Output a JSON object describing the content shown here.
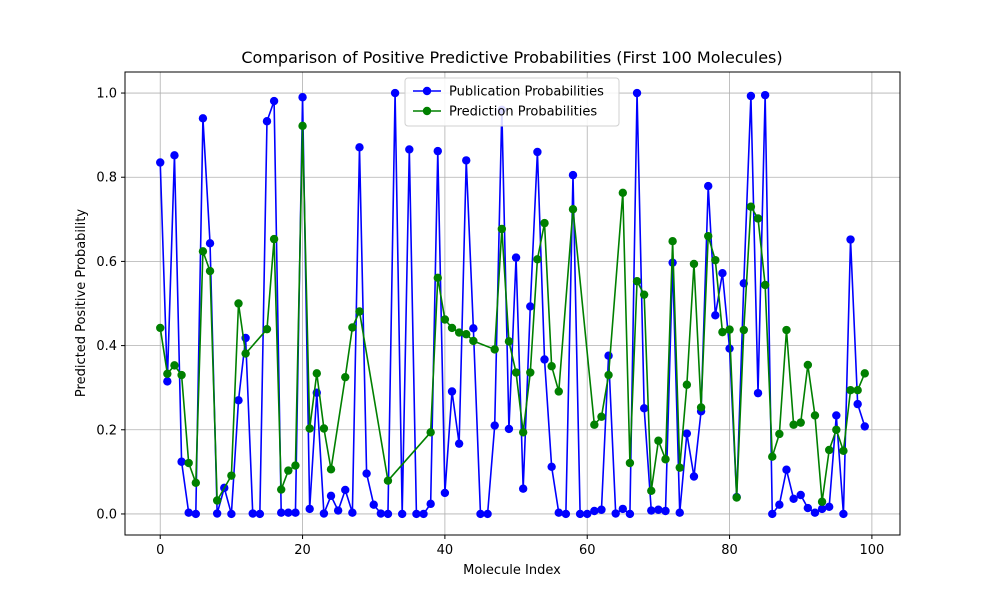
{
  "chart_data": {
    "type": "line",
    "title": "Comparison of Positive Predictive Probabilities (First 100 Molecules)",
    "xlabel": "Molecule Index",
    "ylabel": "Predicted Positive Probability",
    "xlim": [
      -4.95,
      103.95
    ],
    "ylim": [
      -0.05,
      1.05
    ],
    "xticks": [
      0,
      20,
      40,
      60,
      80,
      100
    ],
    "yticks": [
      0.0,
      0.2,
      0.4,
      0.6,
      0.8,
      1.0
    ],
    "grid": true,
    "legend_position": "top-center",
    "series": [
      {
        "name": "Publication Probabilities",
        "color": "#0000ff",
        "values": [
          0.835,
          0.315,
          0.852,
          0.124,
          0.003,
          0.0,
          0.94,
          0.643,
          0.001,
          0.062,
          0.0,
          0.27,
          0.418,
          0.001,
          0.0,
          0.933,
          0.981,
          0.003,
          0.003,
          0.003,
          0.99,
          0.012,
          0.288,
          0.001,
          0.043,
          0.008,
          0.057,
          0.003,
          0.871,
          0.096,
          0.022,
          0.001,
          0.0,
          1.0,
          0.0,
          0.866,
          0.0,
          0.0,
          0.024,
          0.862,
          0.05,
          0.291,
          0.167,
          0.84,
          0.441,
          0.0,
          0.0,
          0.21,
          0.96,
          0.202,
          0.609,
          0.06,
          0.493,
          0.86,
          0.367,
          0.112,
          0.003,
          0.0,
          0.805,
          0.0,
          0.0,
          0.007,
          0.01,
          0.376,
          0.001,
          0.012,
          0.0,
          1.0,
          0.251,
          0.008,
          0.01,
          0.007,
          0.597,
          0.003,
          0.191,
          0.089,
          0.244,
          0.779,
          0.472,
          0.572,
          0.393,
          0.04,
          0.548,
          0.993,
          0.287,
          0.995,
          0.0,
          0.022,
          0.105,
          0.036,
          0.045,
          0.014,
          0.003,
          0.012,
          0.017,
          0.234,
          0.0,
          0.652,
          0.261,
          0.208
        ]
      },
      {
        "name": "Prediction Probabilities",
        "color": "#008000",
        "points": [
          [
            0,
            0.442
          ],
          [
            1,
            0.333
          ],
          [
            2,
            0.353
          ],
          [
            3,
            0.33
          ],
          [
            4,
            0.121
          ],
          [
            5,
            0.074
          ],
          [
            6,
            0.624
          ],
          [
            7,
            0.577
          ],
          [
            8,
            0.032
          ],
          [
            10,
            0.091
          ],
          [
            11,
            0.5
          ],
          [
            12,
            0.381
          ],
          [
            15,
            0.439
          ],
          [
            16,
            0.653
          ],
          [
            17,
            0.058
          ],
          [
            18,
            0.103
          ],
          [
            19,
            0.115
          ],
          [
            20,
            0.922
          ],
          [
            21,
            0.203
          ],
          [
            22,
            0.334
          ],
          [
            23,
            0.203
          ],
          [
            24,
            0.106
          ],
          [
            26,
            0.325
          ],
          [
            27,
            0.443
          ],
          [
            28,
            0.481
          ],
          [
            32,
            0.079
          ],
          [
            38,
            0.194
          ],
          [
            39,
            0.561
          ],
          [
            40,
            0.462
          ],
          [
            41,
            0.442
          ],
          [
            42,
            0.431
          ],
          [
            43,
            0.427
          ],
          [
            44,
            0.411
          ],
          [
            47,
            0.391
          ],
          [
            48,
            0.677
          ],
          [
            49,
            0.41
          ],
          [
            50,
            0.336
          ],
          [
            51,
            0.194
          ],
          [
            52,
            0.336
          ],
          [
            53,
            0.605
          ],
          [
            54,
            0.691
          ],
          [
            55,
            0.351
          ],
          [
            56,
            0.291
          ],
          [
            58,
            0.724
          ],
          [
            61,
            0.212
          ],
          [
            62,
            0.231
          ],
          [
            63,
            0.33
          ],
          [
            65,
            0.763
          ],
          [
            66,
            0.121
          ],
          [
            67,
            0.553
          ],
          [
            68,
            0.521
          ],
          [
            69,
            0.055
          ],
          [
            70,
            0.174
          ],
          [
            71,
            0.13
          ],
          [
            72,
            0.648
          ],
          [
            73,
            0.11
          ],
          [
            74,
            0.307
          ],
          [
            75,
            0.594
          ],
          [
            76,
            0.253
          ],
          [
            77,
            0.66
          ],
          [
            78,
            0.603
          ],
          [
            79,
            0.432
          ],
          [
            80,
            0.438
          ],
          [
            81,
            0.039
          ],
          [
            82,
            0.437
          ],
          [
            83,
            0.73
          ],
          [
            84,
            0.702
          ],
          [
            85,
            0.544
          ],
          [
            86,
            0.136
          ],
          [
            87,
            0.19
          ],
          [
            88,
            0.437
          ],
          [
            89,
            0.212
          ],
          [
            90,
            0.217
          ],
          [
            91,
            0.354
          ],
          [
            92,
            0.234
          ],
          [
            93,
            0.029
          ],
          [
            94,
            0.152
          ],
          [
            95,
            0.2
          ],
          [
            96,
            0.15
          ],
          [
            97,
            0.294
          ],
          [
            98,
            0.294
          ],
          [
            99,
            0.334
          ]
        ]
      }
    ]
  }
}
